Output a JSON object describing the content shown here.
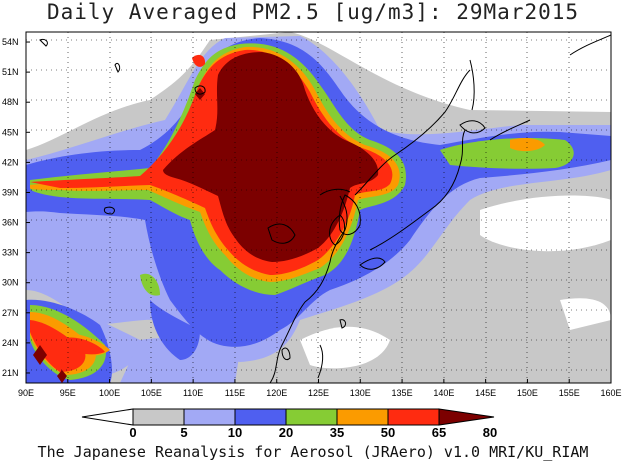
{
  "map_title": "Daily Averaged PM2.5 [ug/m3]: 29Mar2015",
  "footer": "The Japanese Reanalysis for Aerosol (JRAero) v1.0 MRI/KU_RIAM",
  "legend": {
    "bins": [
      {
        "label": "0",
        "color": "#ffffff"
      },
      {
        "label": "5",
        "color": "#c8c8c8"
      },
      {
        "label": "10",
        "color": "#a2a9f5"
      },
      {
        "label": "20",
        "color": "#4f5ff0"
      },
      {
        "label": "35",
        "color": "#86cc34"
      },
      {
        "label": "50",
        "color": "#fb9b00"
      },
      {
        "label": "65",
        "color": "#ff2b10"
      },
      {
        "label": "80",
        "color": "#7c0000"
      }
    ]
  },
  "axes": {
    "lon_labels": [
      "90E",
      "95E",
      "100E",
      "105E",
      "110E",
      "115E",
      "120E",
      "125E",
      "130E",
      "135E",
      "140E",
      "145E",
      "150E",
      "155E",
      "160E"
    ],
    "lat_labels": [
      "21N",
      "24N",
      "27N",
      "30N",
      "33N",
      "36N",
      "39N",
      "42N",
      "45N",
      "48N",
      "51N",
      "54N"
    ],
    "lon_range": [
      90,
      160
    ],
    "lat_range": [
      20,
      55
    ]
  },
  "colors": {
    "gray": "#c8c8c8",
    "lightblue": "#a2a9f5",
    "blue": "#4f5ff0",
    "green": "#86cc34",
    "orange": "#fb9b00",
    "red": "#ff2b10",
    "darkred": "#7c0000"
  }
}
